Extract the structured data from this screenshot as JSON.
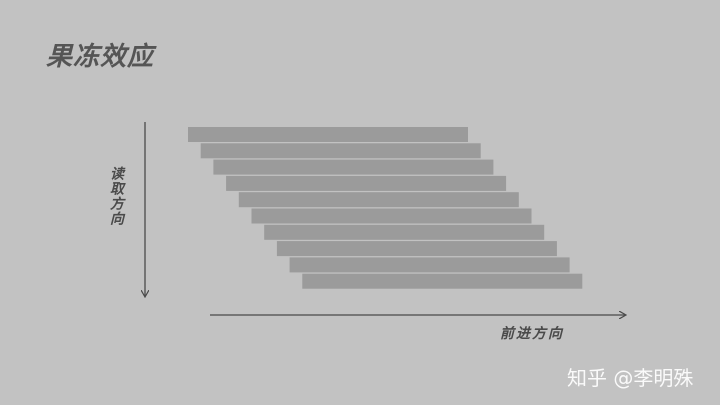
{
  "title": "果冻效应",
  "y_axis_label": "读取方向",
  "x_axis_label": "前进方向",
  "watermark": "知乎 @李明殊",
  "colors": {
    "background": "#c2c2c2",
    "bar": "#9b9b9b",
    "axis": "#4a4a4a",
    "title": "#555555",
    "watermark": "#ffffff"
  },
  "readout_rows": 10
}
